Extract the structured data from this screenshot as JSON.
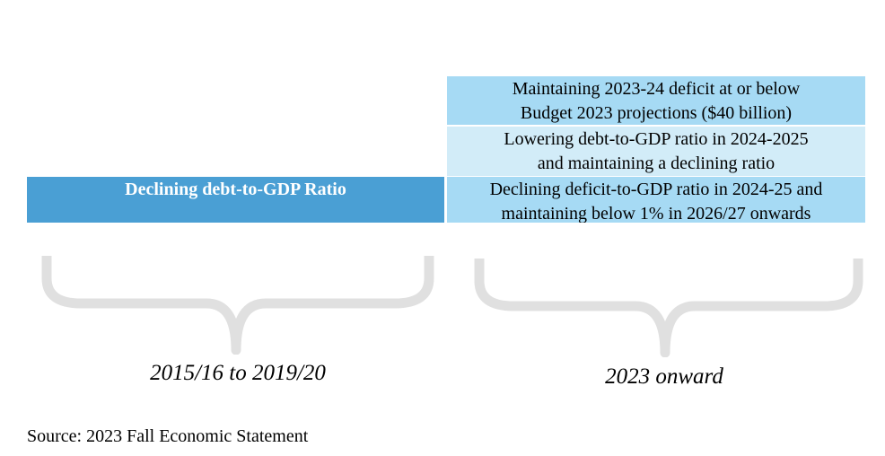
{
  "left_box": {
    "label": "Declining debt-to-GDP Ratio",
    "color": "#4a9fd4"
  },
  "right_boxes": [
    {
      "line1": "Maintaining 2023-24 deficit at or below",
      "line2": "Budget 2023 projections ($40 billion)",
      "color": "#a6daf4"
    },
    {
      "line1": "Lowering debt-to-GDP ratio in 2024-2025",
      "line2": "and maintaining a declining ratio",
      "color": "#d2ecf8"
    },
    {
      "line1": "Declining deficit-to-GDP ratio in 2024-25 and",
      "line2": "maintaining below 1% in 2026/27 onwards",
      "color": "#a6daf4"
    }
  ],
  "periods": {
    "left": "2015/16 to 2019/20",
    "right": "2023 onward"
  },
  "source": "Source: 2023 Fall Economic Statement",
  "brace_color": "#e0e0e0"
}
